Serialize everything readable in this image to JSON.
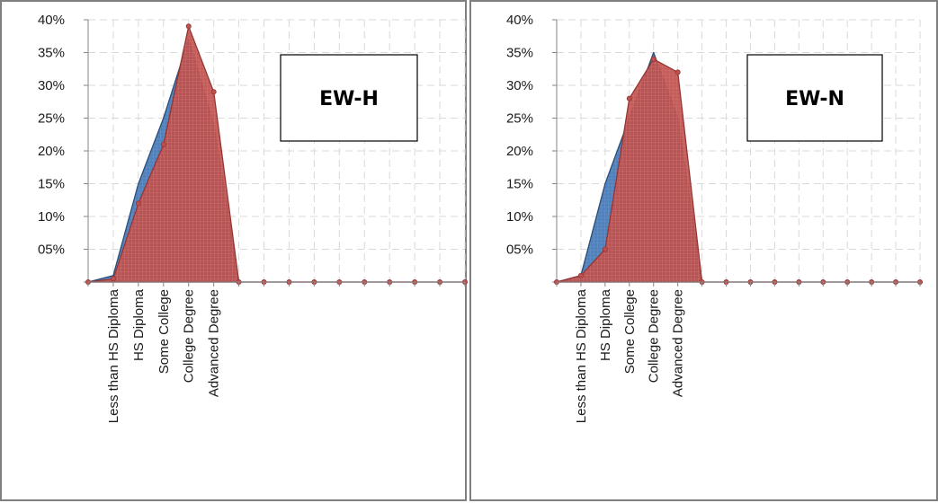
{
  "chart_data": [
    {
      "type": "area",
      "title": "EW-H",
      "categories": [
        "",
        "Less than HS Diploma",
        "HS Diploma",
        "Some College",
        "College Degree",
        "Advanced Degree",
        "",
        "",
        "",
        "",
        "",
        "",
        "",
        "",
        "",
        ""
      ],
      "series": [
        {
          "values": [
            0,
            1,
            15,
            25,
            37,
            24,
            0,
            0,
            0,
            0,
            0,
            0,
            0,
            0,
            0,
            0
          ]
        },
        {
          "values": [
            0,
            0.5,
            12,
            21,
            39,
            29,
            0,
            0,
            0,
            0,
            0,
            0,
            0,
            0,
            0,
            0
          ]
        }
      ],
      "ylim": [
        0,
        40
      ],
      "yticks": [
        "",
        "05%",
        "10%",
        "15%",
        "20%",
        "25%",
        "30%",
        "35%",
        "40%"
      ],
      "grid": true
    },
    {
      "type": "area",
      "title": "EW-N",
      "categories": [
        "",
        "Less than HS Diploma",
        "HS Diploma",
        "Some College",
        "College Degree",
        "Advanced Degree",
        "",
        "",
        "",
        "",
        "",
        "",
        "",
        "",
        "",
        ""
      ],
      "series": [
        {
          "values": [
            0,
            1,
            15,
            25,
            35,
            25,
            0,
            0,
            0,
            0,
            0,
            0,
            0,
            0,
            0,
            0
          ]
        },
        {
          "values": [
            0,
            1,
            5,
            28,
            34,
            32,
            0,
            0,
            0,
            0,
            0,
            0,
            0,
            0,
            0,
            0
          ]
        }
      ],
      "ylim": [
        0,
        40
      ],
      "yticks": [
        "",
        "05%",
        "10%",
        "15%",
        "20%",
        "25%",
        "30%",
        "35%",
        "40%"
      ],
      "grid": true
    }
  ],
  "colors": {
    "series_1_fill": "#4f81bd",
    "series_1_line": "#2c4d75",
    "series_2_fill": "#c0504d",
    "series_2_line": "#943634",
    "grid": "#d9d9d9",
    "border": "#7f7f7f"
  }
}
